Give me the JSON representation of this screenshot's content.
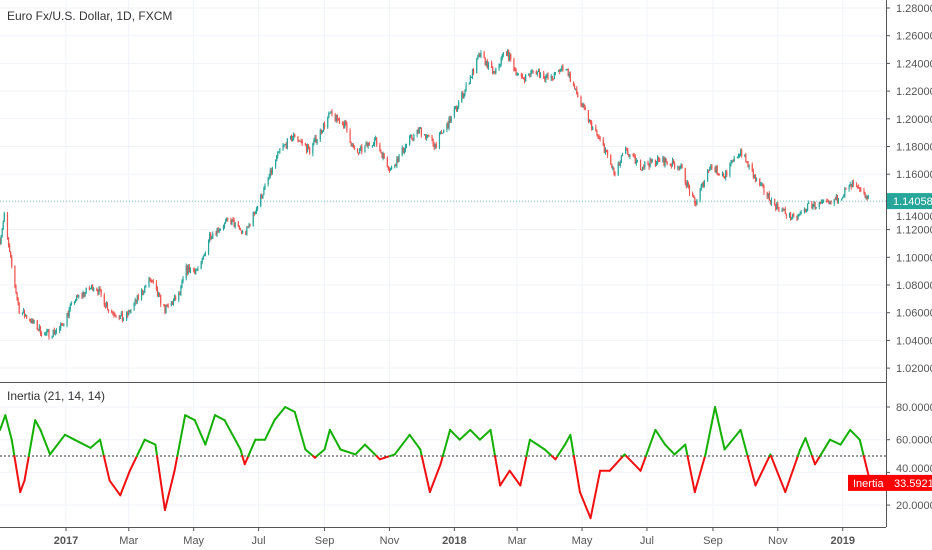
{
  "header": {
    "title": "Euro Fx/U.S. Dollar, 1D, FXCM"
  },
  "indicator": {
    "title": "Inertia (21, 14, 14)",
    "label": "Inertia",
    "last_value": "33.5921"
  },
  "colors": {
    "up": "#26a69a",
    "down": "#ef5350",
    "inertia_up": "#13b000",
    "inertia_down": "#f20f0f",
    "last_price_bg": "#26a69a",
    "inertia_label_bg": "#ff0000",
    "grid": "#f0f3fa",
    "axis_text": "#555555"
  },
  "chart_data": [
    {
      "type": "candlestick",
      "title": "Euro Fx/U.S. Dollar, 1D, FXCM",
      "last_price": "1.14058",
      "ylim": [
        1.01,
        1.29
      ],
      "y_ticks": [
        "1.28000",
        "1.26000",
        "1.24000",
        "1.22000",
        "1.20000",
        "1.18000",
        "1.16000",
        "1.14000",
        "1.12000",
        "1.10000",
        "1.08000",
        "1.06000",
        "1.04000",
        "1.02000"
      ],
      "x_ticks": [
        {
          "label": "2017",
          "date": "2017-01-01"
        },
        {
          "label": "Mar",
          "date": "2017-03-01"
        },
        {
          "label": "May",
          "date": "2017-05-01"
        },
        {
          "label": "Jul",
          "date": "2017-07-01"
        },
        {
          "label": "Sep",
          "date": "2017-09-01"
        },
        {
          "label": "Nov",
          "date": "2017-11-01"
        },
        {
          "label": "2018",
          "date": "2018-01-01"
        },
        {
          "label": "Mar",
          "date": "2018-03-01"
        },
        {
          "label": "May",
          "date": "2018-05-01"
        },
        {
          "label": "Jul",
          "date": "2018-07-01"
        },
        {
          "label": "Sep",
          "date": "2018-09-01"
        },
        {
          "label": "Nov",
          "date": "2018-11-01"
        },
        {
          "label": "2019",
          "date": "2019-01-01"
        }
      ],
      "grid": true,
      "close_path": [
        [
          "2016-10-31",
          1.1125
        ],
        [
          "2016-11-04",
          1.13
        ],
        [
          "2016-11-09",
          1.102
        ],
        [
          "2016-11-18",
          1.062
        ],
        [
          "2016-11-28",
          1.055
        ],
        [
          "2016-12-12",
          1.044
        ],
        [
          "2016-12-26",
          1.048
        ],
        [
          "2017-01-09",
          1.069
        ],
        [
          "2017-01-28",
          1.08
        ],
        [
          "2017-02-11",
          1.062
        ],
        [
          "2017-02-25",
          1.055
        ],
        [
          "2017-03-21",
          1.084
        ],
        [
          "2017-04-04",
          1.062
        ],
        [
          "2017-04-18",
          1.073
        ],
        [
          "2017-04-23",
          1.091
        ],
        [
          "2017-05-07",
          1.091
        ],
        [
          "2017-05-16",
          1.116
        ],
        [
          "2017-06-04",
          1.127
        ],
        [
          "2017-06-18",
          1.116
        ],
        [
          "2017-07-02",
          1.141
        ],
        [
          "2017-07-21",
          1.177
        ],
        [
          "2017-08-04",
          1.188
        ],
        [
          "2017-08-18",
          1.177
        ],
        [
          "2017-09-06",
          1.203
        ],
        [
          "2017-09-20",
          1.196
        ],
        [
          "2017-09-30",
          1.174
        ],
        [
          "2017-10-18",
          1.185
        ],
        [
          "2017-11-02",
          1.163
        ],
        [
          "2017-11-20",
          1.185
        ],
        [
          "2017-11-30",
          1.192
        ],
        [
          "2017-12-14",
          1.181
        ],
        [
          "2017-12-28",
          1.199
        ],
        [
          "2018-01-11",
          1.221
        ],
        [
          "2018-01-25",
          1.246
        ],
        [
          "2018-02-08",
          1.232
        ],
        [
          "2018-02-18",
          1.25
        ],
        [
          "2018-03-04",
          1.228
        ],
        [
          "2018-03-18",
          1.235
        ],
        [
          "2018-04-01",
          1.228
        ],
        [
          "2018-04-15",
          1.239
        ],
        [
          "2018-04-24",
          1.221
        ],
        [
          "2018-05-09",
          1.196
        ],
        [
          "2018-05-23",
          1.177
        ],
        [
          "2018-06-01",
          1.159
        ],
        [
          "2018-06-10",
          1.177
        ],
        [
          "2018-06-25",
          1.166
        ],
        [
          "2018-07-13",
          1.17
        ],
        [
          "2018-08-01",
          1.166
        ],
        [
          "2018-08-15",
          1.138
        ],
        [
          "2018-08-29",
          1.166
        ],
        [
          "2018-09-12",
          1.159
        ],
        [
          "2018-09-27",
          1.177
        ],
        [
          "2018-10-11",
          1.156
        ],
        [
          "2018-10-29",
          1.138
        ],
        [
          "2018-11-17",
          1.127
        ],
        [
          "2018-12-01",
          1.138
        ],
        [
          "2018-12-20",
          1.138
        ],
        [
          "2019-01-10",
          1.152
        ],
        [
          "2019-01-27",
          1.14058
        ]
      ]
    },
    {
      "type": "line",
      "title": "Inertia (21, 14, 14)",
      "ylim": [
        8,
        88
      ],
      "y_ticks": [
        "80.0000",
        "60.0000",
        "40.0000",
        "20.0000"
      ],
      "threshold": 50,
      "series": [
        {
          "name": "Inertia",
          "values": [
            [
              "2016-10-31",
              66
            ],
            [
              "2016-11-05",
              75
            ],
            [
              "2016-11-11",
              60
            ],
            [
              "2016-11-19",
              28
            ],
            [
              "2016-11-23",
              35
            ],
            [
              "2016-12-03",
              72
            ],
            [
              "2016-12-08",
              66
            ],
            [
              "2016-12-17",
              51
            ],
            [
              "2016-12-31",
              63
            ],
            [
              "2017-01-09",
              60
            ],
            [
              "2017-01-24",
              55
            ],
            [
              "2017-02-02",
              60
            ],
            [
              "2017-02-11",
              35
            ],
            [
              "2017-02-21",
              26
            ],
            [
              "2017-03-02",
              41
            ],
            [
              "2017-03-16",
              60
            ],
            [
              "2017-03-26",
              57
            ],
            [
              "2017-04-04",
              17
            ],
            [
              "2017-04-13",
              41
            ],
            [
              "2017-04-23",
              75
            ],
            [
              "2017-05-02",
              72
            ],
            [
              "2017-05-12",
              57
            ],
            [
              "2017-05-21",
              75
            ],
            [
              "2017-05-30",
              72
            ],
            [
              "2017-06-14",
              54
            ],
            [
              "2017-06-18",
              45
            ],
            [
              "2017-06-28",
              60
            ],
            [
              "2017-07-07",
              60
            ],
            [
              "2017-07-16",
              72
            ],
            [
              "2017-07-26",
              80
            ],
            [
              "2017-08-04",
              77
            ],
            [
              "2017-08-14",
              54
            ],
            [
              "2017-08-23",
              49
            ],
            [
              "2017-09-01",
              54
            ],
            [
              "2017-09-06",
              66
            ],
            [
              "2017-09-16",
              54
            ],
            [
              "2017-09-30",
              51
            ],
            [
              "2017-10-09",
              57
            ],
            [
              "2017-10-23",
              48
            ],
            [
              "2017-11-06",
              51
            ],
            [
              "2017-11-20",
              63
            ],
            [
              "2017-11-30",
              54
            ],
            [
              "2017-12-09",
              28
            ],
            [
              "2017-12-19",
              45
            ],
            [
              "2017-12-28",
              66
            ],
            [
              "2018-01-06",
              60
            ],
            [
              "2018-01-16",
              66
            ],
            [
              "2018-01-25",
              60
            ],
            [
              "2018-02-04",
              66
            ],
            [
              "2018-02-13",
              32
            ],
            [
              "2018-02-22",
              41
            ],
            [
              "2018-03-04",
              32
            ],
            [
              "2018-03-13",
              60
            ],
            [
              "2018-03-27",
              54
            ],
            [
              "2018-04-06",
              48
            ],
            [
              "2018-04-15",
              57
            ],
            [
              "2018-04-20",
              63
            ],
            [
              "2018-04-29",
              28
            ],
            [
              "2018-05-09",
              12
            ],
            [
              "2018-05-18",
              41
            ],
            [
              "2018-05-27",
              41
            ],
            [
              "2018-06-10",
              51
            ],
            [
              "2018-06-25",
              41
            ],
            [
              "2018-07-09",
              66
            ],
            [
              "2018-07-18",
              57
            ],
            [
              "2018-07-27",
              51
            ],
            [
              "2018-08-06",
              57
            ],
            [
              "2018-08-15",
              28
            ],
            [
              "2018-08-25",
              51
            ],
            [
              "2018-09-03",
              80
            ],
            [
              "2018-09-12",
              54
            ],
            [
              "2018-09-27",
              66
            ],
            [
              "2018-10-11",
              32
            ],
            [
              "2018-10-25",
              51
            ],
            [
              "2018-11-08",
              28
            ],
            [
              "2018-11-22",
              54
            ],
            [
              "2018-11-27",
              61
            ],
            [
              "2018-12-06",
              45
            ],
            [
              "2018-12-20",
              60
            ],
            [
              "2018-12-30",
              57
            ],
            [
              "2019-01-08",
              66
            ],
            [
              "2019-01-17",
              60
            ],
            [
              "2019-01-27",
              33.5921
            ]
          ]
        }
      ]
    }
  ]
}
